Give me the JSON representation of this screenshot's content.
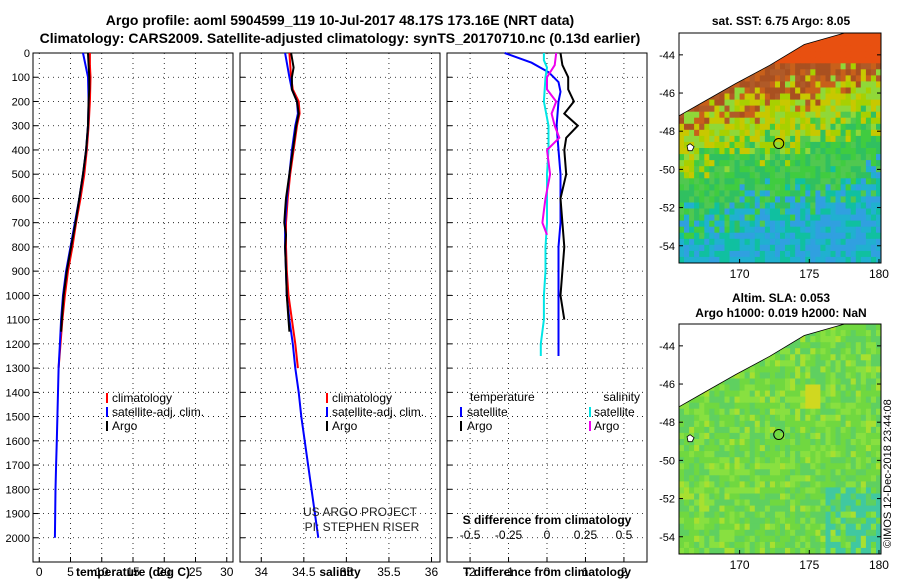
{
  "header": {
    "line1": "Argo profile: aoml 5904599_119 10-Jul-2017 48.17S 173.16E (NRT data)",
    "line2": "Climatology: CARS2009. Satellite-adjusted climatology: synTS_20170710.nc (0.13d earlier)"
  },
  "map_top": {
    "title": "sat. SST: 6.75 Argo: 8.05",
    "lat_ticks": [
      "-44",
      "-46",
      "-48",
      "-50",
      "-52",
      "-54"
    ],
    "lon_ticks": [
      "170",
      "175",
      "180"
    ]
  },
  "map_bottom": {
    "title1": "Altim. SLA: 0.053",
    "title2": "Argo h1000: 0.019 h2000: NaN",
    "lat_ticks": [
      "-44",
      "-46",
      "-48",
      "-50",
      "-52",
      "-54"
    ],
    "lon_ticks": [
      "170",
      "175",
      "180"
    ]
  },
  "stamp": "©IMOS 12-Dec-2018 23:44:08",
  "credits": {
    "line1": "US ARGO PROJECT",
    "line2": "PI: STEPHEN RISER"
  },
  "colors": {
    "climatology": "#ff0000",
    "satellite": "#0000ff",
    "argo": "#000000",
    "sat_s": "#00e5e5",
    "argo_s": "#ee00ee"
  },
  "chart_data": [
    {
      "type": "line",
      "name": "temperature-profile",
      "xlabel": "temperature (deg C)",
      "ylabel": "",
      "xlim": [
        -1,
        31
      ],
      "ylim": [
        2100,
        0
      ],
      "xticks": [
        0,
        5,
        10,
        15,
        20,
        25,
        30
      ],
      "yticks": [
        0,
        100,
        200,
        300,
        400,
        500,
        600,
        700,
        800,
        900,
        1000,
        1100,
        1200,
        1300,
        1400,
        1500,
        1600,
        1700,
        1800,
        1900,
        2000
      ],
      "legend": [
        "climatology",
        "satellite-adj. clim.",
        "Argo"
      ],
      "series": [
        {
          "name": "climatology",
          "depth": [
            0,
            50,
            100,
            200,
            300,
            400,
            500,
            600,
            700,
            800,
            900,
            1000,
            1100,
            1200,
            1300
          ],
          "values": [
            8.1,
            8.1,
            8.2,
            8.1,
            7.9,
            7.6,
            7.2,
            6.6,
            5.9,
            5.3,
            4.6,
            4.1,
            3.7,
            3.4,
            3.1
          ]
        },
        {
          "name": "satellite-adj. clim.",
          "depth": [
            0,
            50,
            100,
            200,
            300,
            400,
            500,
            600,
            700,
            800,
            900,
            1000,
            1100,
            1200,
            1300,
            1400,
            1500,
            1600,
            1700,
            1800,
            1900,
            2000
          ],
          "values": [
            7.0,
            7.4,
            7.8,
            7.9,
            7.8,
            7.5,
            7.0,
            6.4,
            5.7,
            5.0,
            4.3,
            3.8,
            3.5,
            3.3,
            3.1,
            3.0,
            2.9,
            2.8,
            2.7,
            2.6,
            2.55,
            2.5
          ]
        },
        {
          "name": "Argo",
          "depth": [
            0,
            50,
            100,
            150,
            200,
            300,
            400,
            500,
            600,
            700,
            800,
            900,
            1000,
            1100,
            1150
          ],
          "values": [
            7.8,
            7.9,
            8.0,
            8.0,
            7.9,
            7.8,
            7.5,
            7.0,
            6.4,
            5.8,
            5.1,
            4.4,
            3.9,
            3.6,
            3.5
          ]
        }
      ]
    },
    {
      "type": "line",
      "name": "salinity-profile",
      "xlabel": "salinity",
      "xlim": [
        33.75,
        36.1
      ],
      "ylim": [
        2100,
        0
      ],
      "xticks": [
        34,
        34.5,
        35,
        35.5,
        36
      ],
      "xticklabels": [
        "34",
        "34.5",
        "35",
        "35.5",
        "36"
      ],
      "legend": [
        "climatology",
        "satellite-adj. clim.",
        "Argo"
      ],
      "series": [
        {
          "name": "climatology",
          "depth": [
            0,
            100,
            150,
            200,
            250,
            300,
            400,
            500,
            600,
            700,
            800,
            900,
            1000,
            1100,
            1200,
            1300
          ],
          "values": [
            34.33,
            34.35,
            34.37,
            34.44,
            34.45,
            34.42,
            34.38,
            34.34,
            34.31,
            34.29,
            34.29,
            34.3,
            34.32,
            34.36,
            34.4,
            34.43
          ]
        },
        {
          "name": "satellite-adj. clim.",
          "depth": [
            0,
            100,
            150,
            200,
            250,
            300,
            400,
            500,
            600,
            700,
            800,
            900,
            1000,
            1100,
            1200,
            1300,
            1400,
            1500,
            1600,
            1700,
            1800,
            1900,
            2000
          ],
          "values": [
            34.28,
            34.33,
            34.36,
            34.42,
            34.43,
            34.4,
            34.36,
            34.33,
            34.3,
            34.28,
            34.28,
            34.29,
            34.3,
            34.33,
            34.37,
            34.4,
            34.44,
            34.47,
            34.51,
            34.55,
            34.59,
            34.63,
            34.67
          ]
        },
        {
          "name": "Argo",
          "depth": [
            0,
            60,
            100,
            150,
            200,
            250,
            300,
            400,
            500,
            600,
            650,
            700,
            750,
            800,
            900,
            1000,
            1100,
            1150
          ],
          "values": [
            34.35,
            34.38,
            34.36,
            34.36,
            34.42,
            34.44,
            34.41,
            34.37,
            34.33,
            34.29,
            34.28,
            34.27,
            34.29,
            34.28,
            34.29,
            34.3,
            34.32,
            34.33
          ]
        }
      ]
    },
    {
      "type": "line",
      "name": "difference-profile",
      "xlabel": "T difference from climatology",
      "xlabel_top": "S difference from climatology",
      "xlim": [
        -2.6,
        2.6
      ],
      "ylim": [
        2100,
        0
      ],
      "xticks": [
        -2,
        -1,
        0,
        1,
        2
      ],
      "s_ticklabels": [
        "-0.5",
        "-0.25",
        "0",
        "0.25",
        "0.5"
      ],
      "legend": {
        "temperature": [
          "satellite",
          "Argo"
        ],
        "salinity": [
          "satellite",
          "Argo"
        ]
      },
      "series": [
        {
          "name": "temperature satellite",
          "depth": [
            0,
            40,
            80,
            120,
            160,
            200,
            300,
            400,
            500,
            600,
            700,
            800,
            900,
            1000,
            1100,
            1200,
            1250
          ],
          "values": [
            -1.1,
            -0.4,
            0.05,
            0.3,
            0.35,
            0.3,
            0.25,
            0.3,
            0.35,
            0.35,
            0.35,
            0.3,
            0.3,
            0.3,
            0.3,
            0.3,
            0.3
          ]
        },
        {
          "name": "temperature Argo",
          "depth": [
            0,
            50,
            100,
            150,
            200,
            250,
            300,
            350,
            400,
            500,
            600,
            700,
            800,
            900,
            1000,
            1100
          ],
          "values": [
            0.35,
            0.4,
            0.55,
            0.55,
            0.7,
            0.45,
            0.8,
            0.5,
            0.45,
            0.5,
            0.35,
            0.4,
            0.45,
            0.4,
            0.35,
            0.45
          ]
        },
        {
          "name": "salinity satellite",
          "depth": [
            0,
            30,
            60,
            100,
            200,
            300,
            400,
            500,
            600,
            700,
            800,
            900,
            1000,
            1100,
            1200,
            1250
          ],
          "values": [
            -0.02,
            -0.02,
            0.0,
            -0.01,
            -0.02,
            0.01,
            0.01,
            0.0,
            0.0,
            0.0,
            -0.01,
            -0.01,
            -0.02,
            -0.02,
            -0.04,
            -0.04
          ]
        },
        {
          "name": "salinity Argo",
          "depth": [
            0,
            50,
            100,
            150,
            200,
            250,
            300,
            350,
            400,
            500,
            600,
            650,
            700,
            750
          ],
          "values": [
            0.06,
            0.05,
            0.0,
            0.0,
            0.06,
            0.03,
            0.05,
            0.08,
            0.0,
            0.02,
            -0.01,
            -0.02,
            -0.03,
            0.0
          ]
        }
      ]
    }
  ]
}
